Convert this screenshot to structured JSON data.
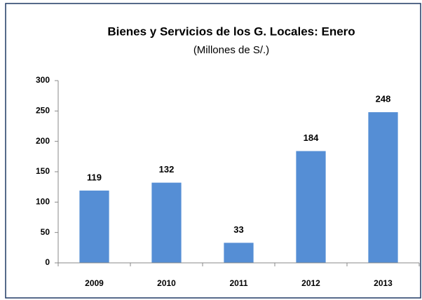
{
  "chart_data": {
    "type": "bar",
    "title": "Bienes y Servicios de los G. Locales: Enero",
    "subtitle": "(Millones de S/.)",
    "categories": [
      "2009",
      "2010",
      "2011",
      "2012",
      "2013"
    ],
    "values": [
      119,
      132,
      33,
      184,
      248
    ],
    "color": "#558ed5",
    "ylim": [
      0,
      300
    ],
    "yticks": [
      0,
      50,
      100,
      150,
      200,
      250,
      300
    ],
    "grid": false
  }
}
